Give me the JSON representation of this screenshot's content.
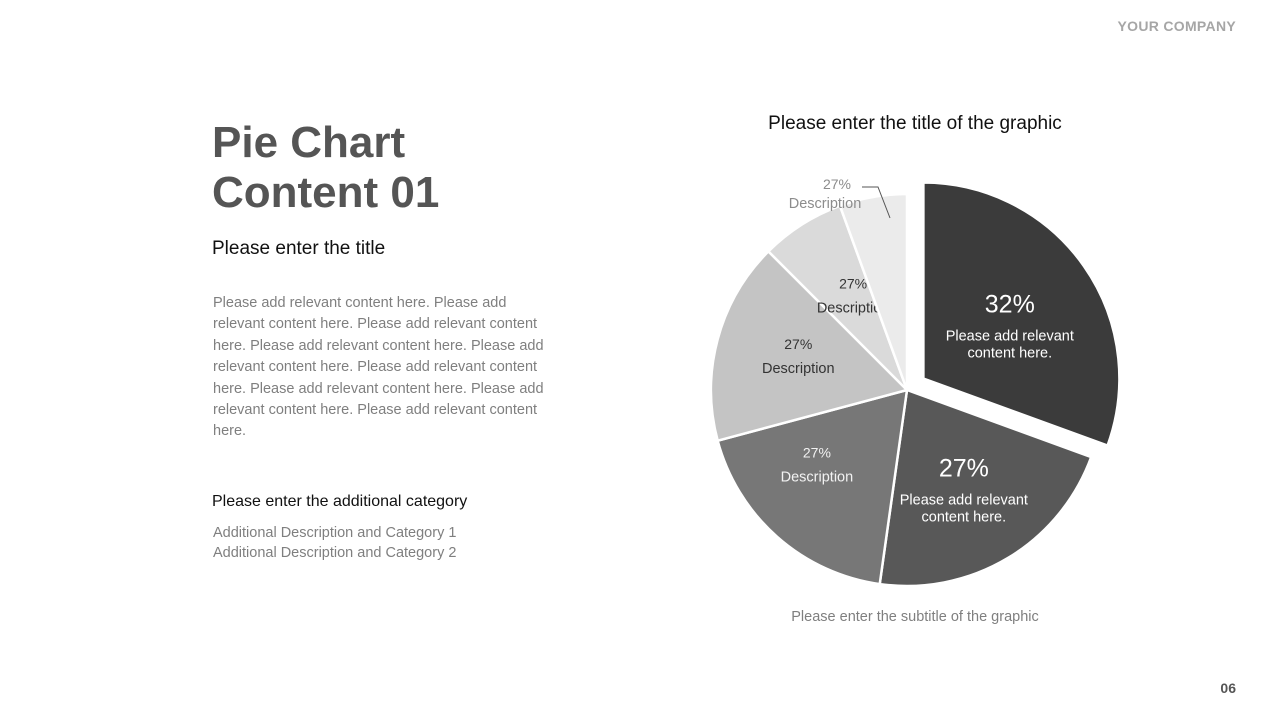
{
  "header": {
    "company": "YOUR COMPANY"
  },
  "footer": {
    "page_number": "06"
  },
  "left": {
    "title": "Pie Chart\nContent 01",
    "subtitle": "Please enter the title",
    "body": "Please add relevant content here. Please add relevant content here. Please add relevant content here. Please add relevant content here. Please add relevant content here. Please add relevant content here. Please add relevant content here. Please add relevant content here. Please add relevant content here.",
    "category_title": "Please enter the additional category",
    "categories": [
      "Additional Description and Category 1",
      "Additional Description and Category 2"
    ]
  },
  "graphic": {
    "title": "Please enter the title of the graphic",
    "subtitle": "Please enter the subtitle of the graphic"
  },
  "chart_data": {
    "type": "pie",
    "title": "Please enter the title of the graphic",
    "subtitle": "Please enter the subtitle of the graphic",
    "slices": [
      {
        "value": 32,
        "percent_label": "32%",
        "description": "Please add relevant content here.",
        "color": "#3b3b3b",
        "exploded": true
      },
      {
        "value": 27,
        "percent_label": "27%",
        "description": "Please add relevant content here.",
        "color": "#585858",
        "exploded": false
      },
      {
        "value": 27,
        "percent_label": "27%",
        "description": "Description",
        "color": "#777777",
        "exploded": false
      },
      {
        "value": 27,
        "percent_label": "27%",
        "description": "Description",
        "color": "#c4c4c4",
        "exploded": false
      },
      {
        "value": 27,
        "percent_label": "27%",
        "description": "Description",
        "color": "#dadada",
        "exploded": false
      },
      {
        "value": 27,
        "percent_label": "27%",
        "description": "Description",
        "color": "#ebebeb",
        "exploded": false
      }
    ]
  }
}
